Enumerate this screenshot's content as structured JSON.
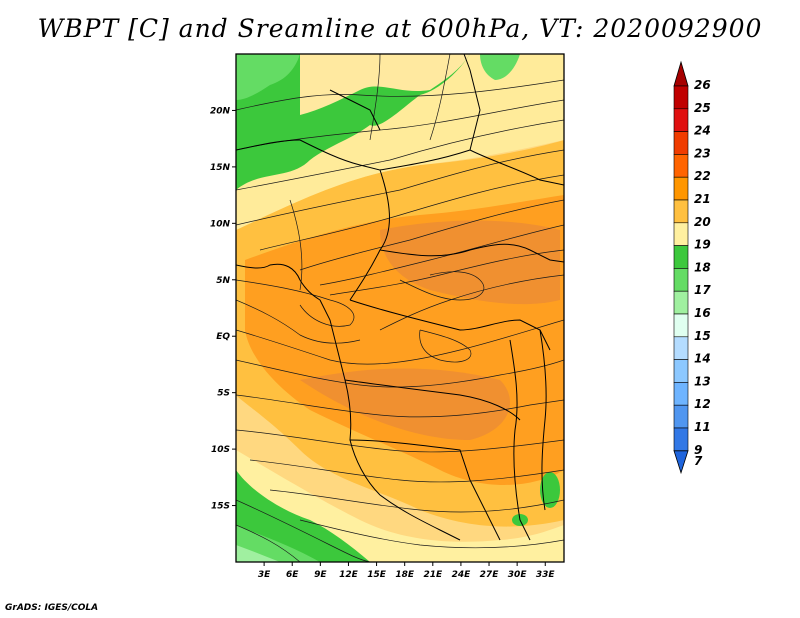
{
  "title": "WBPT [C] and Sreamline at 600hPa, VT: 2020092900",
  "credit": "GrADS: IGES/COLA",
  "map": {
    "lat_labels": [
      "20N",
      "15N",
      "10N",
      "5N",
      "EQ",
      "5S",
      "10S",
      "15S"
    ],
    "lat_values": [
      20,
      15,
      10,
      5,
      0,
      -5,
      -10,
      -15
    ],
    "lon_labels": [
      "3E",
      "6E",
      "9E",
      "12E",
      "15E",
      "18E",
      "21E",
      "24E",
      "27E",
      "30E",
      "33E"
    ],
    "lon_values": [
      3,
      6,
      9,
      12,
      15,
      18,
      21,
      24,
      27,
      30,
      33
    ],
    "lon_range": [
      0,
      35
    ],
    "lat_range": [
      -20,
      25
    ],
    "field": "Wet-bulb potential temperature (C)",
    "level": "600hPa",
    "overlay": "Streamlines"
  },
  "colorbar": {
    "levels": [
      "26",
      "25",
      "24",
      "23",
      "22",
      "21",
      "20",
      "19",
      "18",
      "17",
      "16",
      "15",
      "14",
      "13",
      "12",
      "11",
      "9",
      "7"
    ],
    "colors": {
      "26": "#a60000",
      "25": "#c00000",
      "24": "#e01010",
      "23": "#f03c00",
      "22": "#ff6400",
      "21": "#ff9600",
      "20": "#ffc040",
      "19": "#fff0a0",
      "18": "#3cc83c",
      "17": "#64dc64",
      "16": "#a0f0a0",
      "15": "#e0fff0",
      "14": "#b4dcff",
      "13": "#8cc8ff",
      "12": "#6eb4ff",
      "11": "#5096f0",
      "9": "#3278e6",
      "7": "#1e64dc"
    }
  }
}
